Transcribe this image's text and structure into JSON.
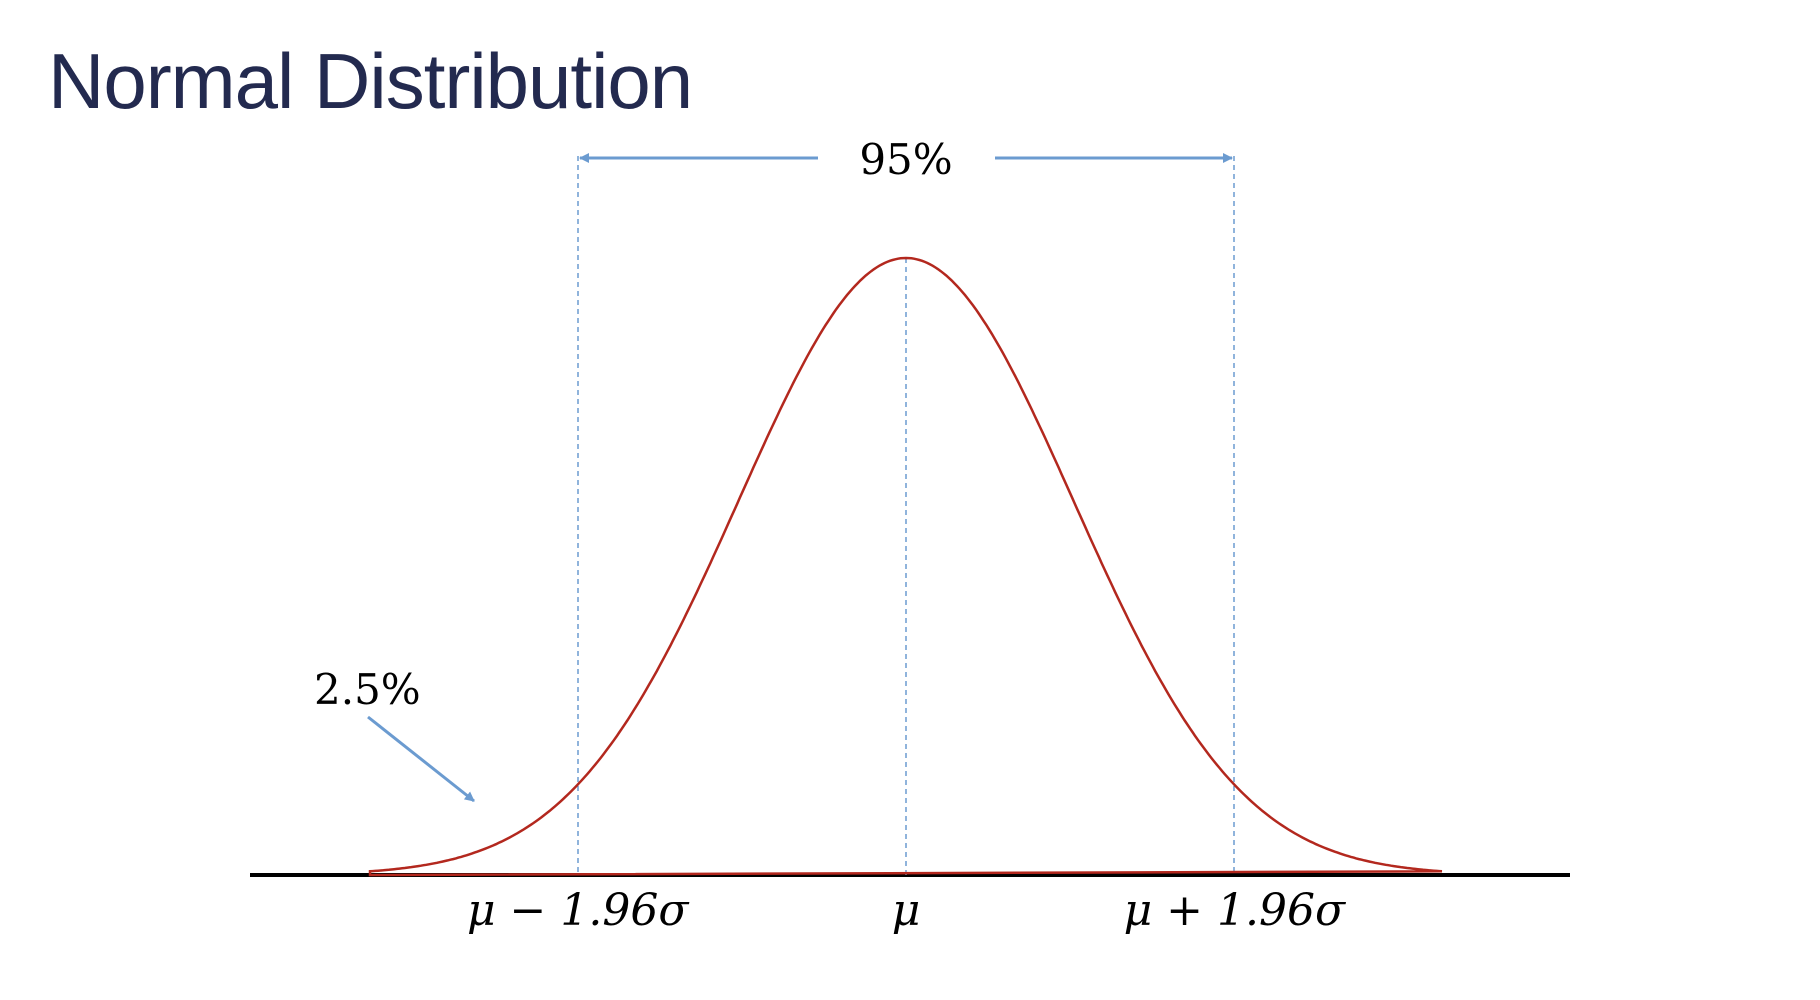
{
  "title": "Normal Distribution",
  "interval_label": "95%",
  "tail_label": "2.5%",
  "ticks": [
    {
      "z": -1.96,
      "label": "μ − 1.96σ"
    },
    {
      "z": 0,
      "label": "μ"
    },
    {
      "z": 1.96,
      "label": "μ + 1.96σ"
    }
  ],
  "colors": {
    "title": "#232a4f",
    "curve": "#b3281e",
    "guides": "#6b9bd0",
    "axis": "#000000"
  }
}
